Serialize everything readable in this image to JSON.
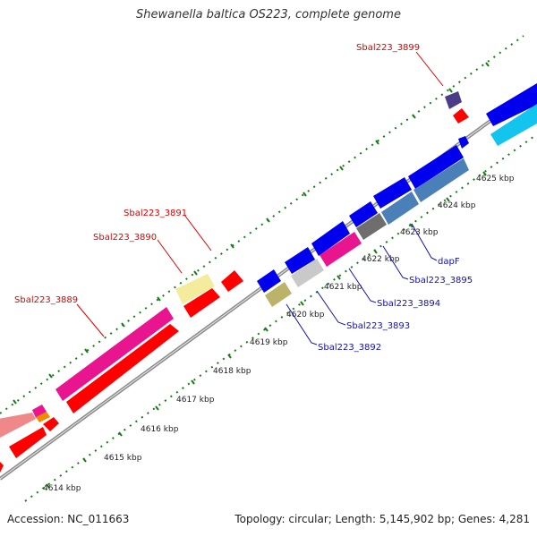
{
  "title": "Shewanella baltica OS223, complete genome",
  "footer": {
    "accession": "Accession: NC_011663",
    "summary": "Topology: circular; Length: 5,145,902 bp; Genes: 4,281"
  },
  "scale_labels": [
    "4614 kbp",
    "4615 kbp",
    "4616 kbp",
    "4617 kbp",
    "4618 kbp",
    "4619 kbp",
    "4620 kbp",
    "4621 kbp",
    "4622 kbp",
    "4623 kbp",
    "4624 kbp",
    "4625 kbp"
  ],
  "gene_labels_outer": [
    "Sbal223_3889",
    "Sbal223_3890",
    "Sbal223_3891",
    "Sbal223_3899"
  ],
  "gene_labels_inner": [
    "Sbal223_3892",
    "Sbal223_3893",
    "Sbal223_3894",
    "Sbal223_3895",
    "dapF"
  ],
  "colors": {
    "red": "#ff0000",
    "blue": "#0000ee",
    "magenta": "#e8158f",
    "pale_yellow": "#f3ec9c",
    "olive": "#bbb36a",
    "light_gray": "#c9c9c9",
    "dark_gray": "#6e6e6e",
    "steel_blue": "#4a7fb8",
    "cyan": "#12c4ee",
    "dark_purple": "#4b3c88",
    "salmon": "#f0888a",
    "orange": "#f08a00",
    "backbone": "#8c8c8c",
    "tick_green": "#1b7a1b",
    "label_red": "#dd0000",
    "label_blue": "#1111aa"
  }
}
